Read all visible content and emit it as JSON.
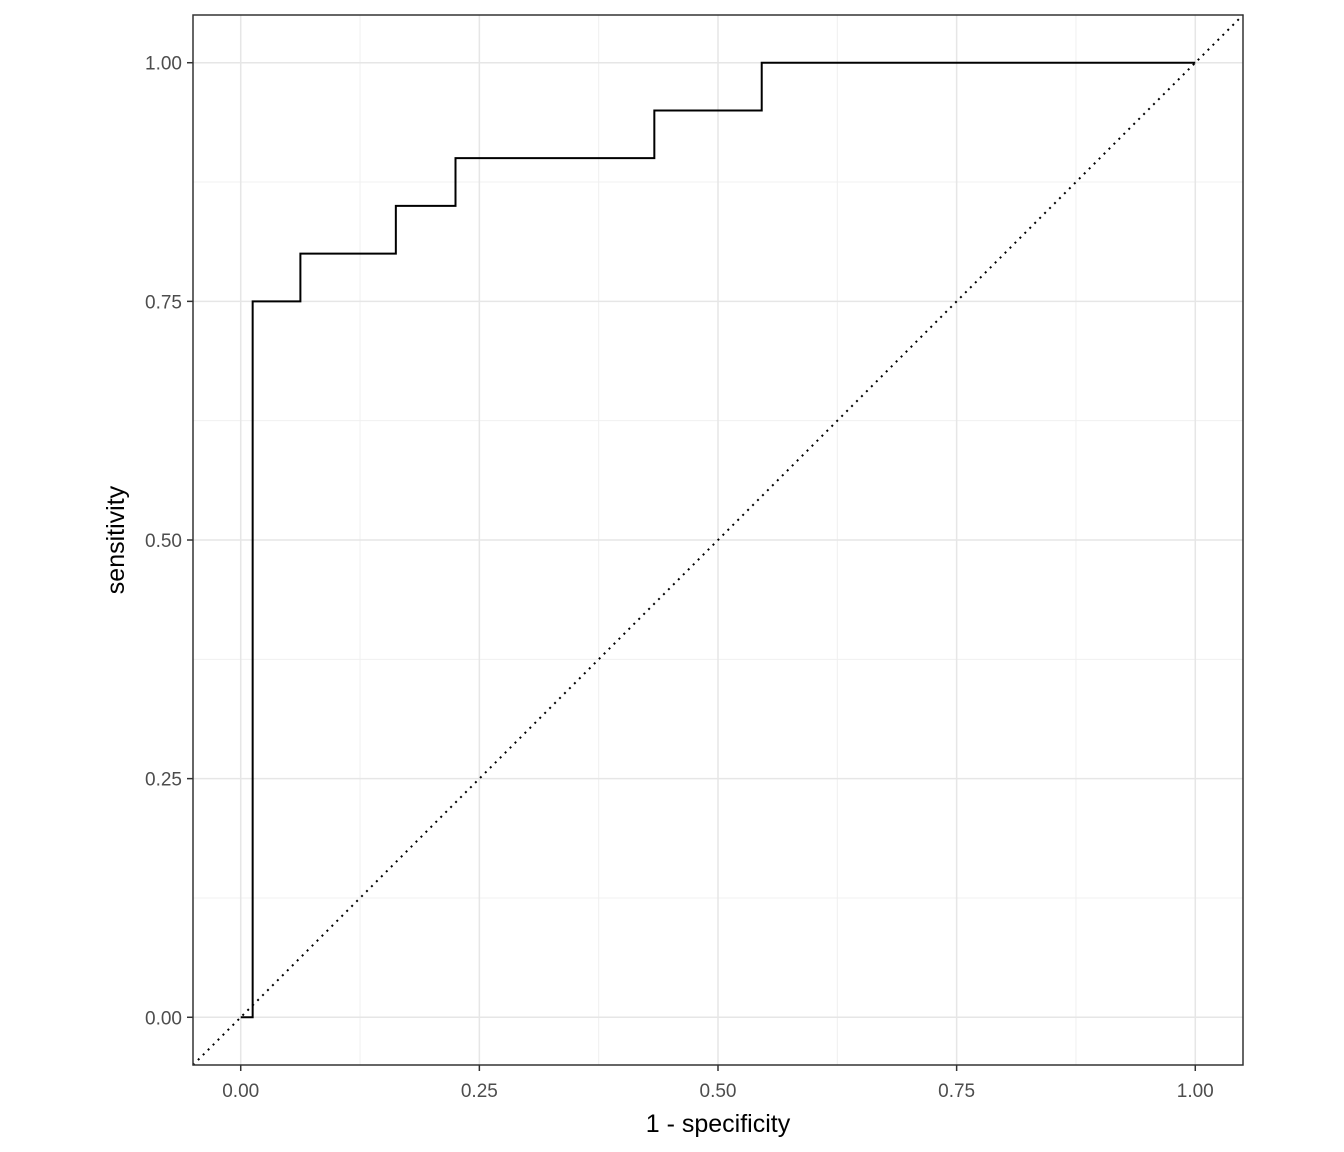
{
  "chart_data": {
    "type": "line",
    "title": "",
    "xlabel": "1 - specificity",
    "ylabel": "sensitivity",
    "xlim": [
      -0.05,
      1.05
    ],
    "ylim": [
      -0.05,
      1.05
    ],
    "x_ticks": [
      0.0,
      0.25,
      0.5,
      0.75,
      1.0
    ],
    "x_tick_labels": [
      "0.00",
      "0.25",
      "0.50",
      "0.75",
      "1.00"
    ],
    "y_ticks": [
      0.0,
      0.25,
      0.5,
      0.75,
      1.0
    ],
    "y_tick_labels": [
      "0.00",
      "0.25",
      "0.50",
      "0.75",
      "1.00"
    ],
    "grid": true,
    "series": [
      {
        "style": "step",
        "color": "#000000",
        "x": [
          0.0,
          0.0125,
          0.0125,
          0.0625,
          0.0625,
          0.1625,
          0.1625,
          0.225,
          0.225,
          0.4333,
          0.4333,
          0.5458,
          0.5458,
          1.0
        ],
        "y": [
          0.0,
          0.0,
          0.75,
          0.75,
          0.8,
          0.8,
          0.85,
          0.85,
          0.9,
          0.9,
          0.95,
          0.95,
          1.0,
          1.0
        ]
      }
    ],
    "reference_line": {
      "style": "dotted",
      "color": "#000000",
      "x": [
        -0.05,
        1.05
      ],
      "y": [
        -0.05,
        1.05
      ]
    }
  }
}
